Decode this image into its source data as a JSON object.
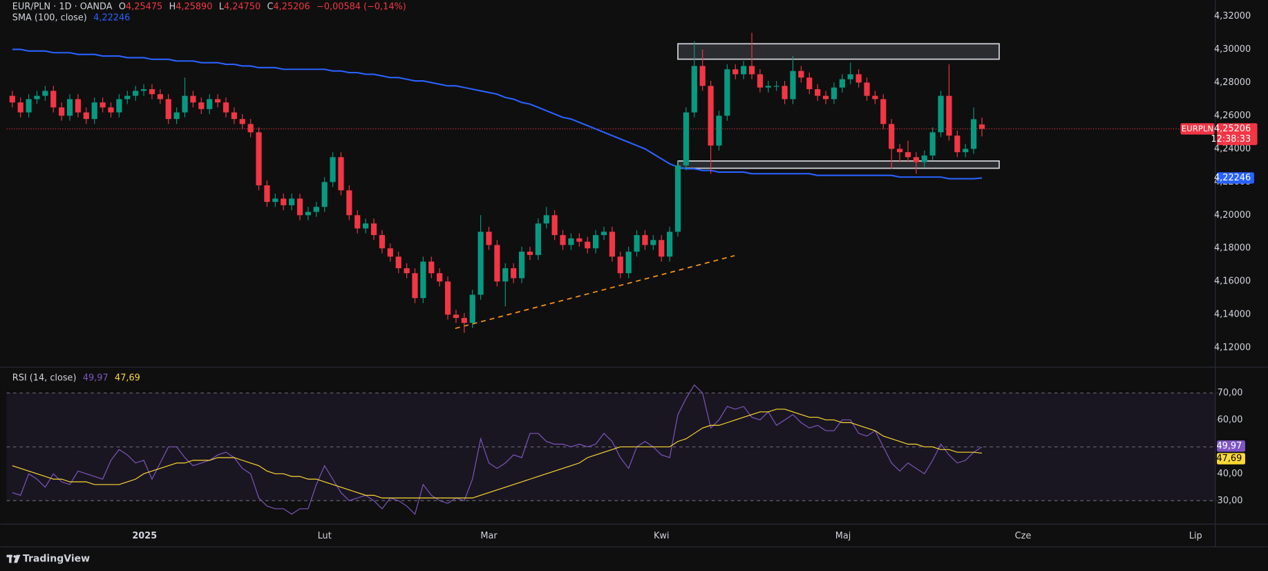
{
  "chart_data": {
    "type": "candlestick",
    "symbol": "EUR/PLN · 1D · OANDA",
    "ohlc_legend": [
      {
        "key": "O",
        "value": "4,25475"
      },
      {
        "key": "H",
        "value": "4,25890"
      },
      {
        "key": "L",
        "value": "4,24750"
      },
      {
        "key": "C",
        "value": "4,25206"
      }
    ],
    "change": "−0,00584 (−0,14%)",
    "up_color": "#089981",
    "down_color": "#f23645",
    "candles": [
      [
        4.272,
        4.275,
        4.265,
        4.268
      ],
      [
        4.268,
        4.271,
        4.259,
        4.262
      ],
      [
        4.262,
        4.273,
        4.259,
        4.27
      ],
      [
        4.27,
        4.275,
        4.267,
        4.272
      ],
      [
        4.272,
        4.278,
        4.269,
        4.275
      ],
      [
        4.275,
        4.278,
        4.262,
        4.265
      ],
      [
        4.265,
        4.268,
        4.257,
        4.26
      ],
      [
        4.26,
        4.273,
        4.257,
        4.27
      ],
      [
        4.27,
        4.273,
        4.259,
        4.262
      ],
      [
        4.262,
        4.265,
        4.255,
        4.258
      ],
      [
        4.258,
        4.271,
        4.255,
        4.268
      ],
      [
        4.268,
        4.271,
        4.262,
        4.265
      ],
      [
        4.265,
        4.268,
        4.259,
        4.262
      ],
      [
        4.262,
        4.273,
        4.259,
        4.27
      ],
      [
        4.27,
        4.275,
        4.267,
        4.272
      ],
      [
        4.272,
        4.278,
        4.269,
        4.275
      ],
      [
        4.275,
        4.279,
        4.272,
        4.276
      ],
      [
        4.276,
        4.279,
        4.27,
        4.273
      ],
      [
        4.273,
        4.276,
        4.267,
        4.27
      ],
      [
        4.27,
        4.273,
        4.255,
        4.258
      ],
      [
        4.258,
        4.265,
        4.255,
        4.262
      ],
      [
        4.262,
        4.283,
        4.259,
        4.272
      ],
      [
        4.272,
        4.275,
        4.265,
        4.268
      ],
      [
        4.268,
        4.271,
        4.261,
        4.264
      ],
      [
        4.264,
        4.273,
        4.261,
        4.27
      ],
      [
        4.27,
        4.273,
        4.265,
        4.268
      ],
      [
        4.268,
        4.271,
        4.259,
        4.262
      ],
      [
        4.262,
        4.265,
        4.255,
        4.258
      ],
      [
        4.258,
        4.261,
        4.252,
        4.255
      ],
      [
        4.255,
        4.258,
        4.247,
        4.25
      ],
      [
        4.25,
        4.253,
        4.215,
        4.218
      ],
      [
        4.218,
        4.221,
        4.205,
        4.208
      ],
      [
        4.208,
        4.213,
        4.205,
        4.21
      ],
      [
        4.21,
        4.213,
        4.203,
        4.206
      ],
      [
        4.206,
        4.213,
        4.203,
        4.21
      ],
      [
        4.21,
        4.213,
        4.197,
        4.2
      ],
      [
        4.2,
        4.205,
        4.197,
        4.202
      ],
      [
        4.202,
        4.208,
        4.199,
        4.205
      ],
      [
        4.205,
        4.223,
        4.202,
        4.22
      ],
      [
        4.22,
        4.238,
        4.217,
        4.235
      ],
      [
        4.235,
        4.238,
        4.212,
        4.215
      ],
      [
        4.215,
        4.218,
        4.197,
        4.2
      ],
      [
        4.2,
        4.203,
        4.189,
        4.192
      ],
      [
        4.192,
        4.198,
        4.189,
        4.195
      ],
      [
        4.195,
        4.198,
        4.185,
        4.188
      ],
      [
        4.188,
        4.191,
        4.177,
        4.18
      ],
      [
        4.18,
        4.183,
        4.172,
        4.175
      ],
      [
        4.175,
        4.178,
        4.165,
        4.168
      ],
      [
        4.168,
        4.171,
        4.162,
        4.165
      ],
      [
        4.165,
        4.168,
        4.147,
        4.15
      ],
      [
        4.15,
        4.175,
        4.147,
        4.172
      ],
      [
        4.172,
        4.175,
        4.162,
        4.165
      ],
      [
        4.165,
        4.168,
        4.157,
        4.16
      ],
      [
        4.16,
        4.163,
        4.137,
        4.14
      ],
      [
        4.14,
        4.143,
        4.135,
        4.138
      ],
      [
        4.138,
        4.141,
        4.129,
        4.135
      ],
      [
        4.135,
        4.155,
        4.132,
        4.152
      ],
      [
        4.152,
        4.2,
        4.149,
        4.19
      ],
      [
        4.19,
        4.193,
        4.179,
        4.182
      ],
      [
        4.182,
        4.185,
        4.157,
        4.16
      ],
      [
        4.16,
        4.171,
        4.145,
        4.168
      ],
      [
        4.168,
        4.171,
        4.159,
        4.162
      ],
      [
        4.162,
        4.181,
        4.159,
        4.178
      ],
      [
        4.178,
        4.181,
        4.173,
        4.176
      ],
      [
        4.176,
        4.198,
        4.173,
        4.195
      ],
      [
        4.195,
        4.205,
        4.192,
        4.2
      ],
      [
        4.2,
        4.203,
        4.185,
        4.188
      ],
      [
        4.188,
        4.191,
        4.179,
        4.182
      ],
      [
        4.182,
        4.189,
        4.179,
        4.186
      ],
      [
        4.186,
        4.189,
        4.181,
        4.184
      ],
      [
        4.184,
        4.187,
        4.177,
        4.18
      ],
      [
        4.18,
        4.191,
        4.177,
        4.188
      ],
      [
        4.188,
        4.193,
        4.185,
        4.19
      ],
      [
        4.19,
        4.193,
        4.172,
        4.175
      ],
      [
        4.175,
        4.178,
        4.162,
        4.165
      ],
      [
        4.165,
        4.181,
        4.162,
        4.178
      ],
      [
        4.178,
        4.191,
        4.175,
        4.188
      ],
      [
        4.188,
        4.191,
        4.179,
        4.182
      ],
      [
        4.182,
        4.188,
        4.179,
        4.185
      ],
      [
        4.185,
        4.188,
        4.172,
        4.175
      ],
      [
        4.175,
        4.193,
        4.172,
        4.19
      ],
      [
        4.19,
        4.233,
        4.187,
        4.23
      ],
      [
        4.23,
        4.265,
        4.227,
        4.262
      ],
      [
        4.262,
        4.305,
        4.259,
        4.29
      ],
      [
        4.29,
        4.3,
        4.275,
        4.278
      ],
      [
        4.278,
        4.281,
        4.225,
        4.242
      ],
      [
        4.242,
        4.263,
        4.239,
        4.26
      ],
      [
        4.26,
        4.291,
        4.257,
        4.288
      ],
      [
        4.288,
        4.291,
        4.282,
        4.285
      ],
      [
        4.285,
        4.293,
        4.282,
        4.29
      ],
      [
        4.29,
        4.31,
        4.282,
        4.285
      ],
      [
        4.285,
        4.288,
        4.274,
        4.277
      ],
      [
        4.277,
        4.281,
        4.274,
        4.278
      ],
      [
        4.278,
        4.281,
        4.275,
        4.278
      ],
      [
        4.278,
        4.281,
        4.267,
        4.27
      ],
      [
        4.27,
        4.296,
        4.267,
        4.287
      ],
      [
        4.287,
        4.29,
        4.28,
        4.283
      ],
      [
        4.283,
        4.286,
        4.273,
        4.276
      ],
      [
        4.276,
        4.279,
        4.269,
        4.272
      ],
      [
        4.272,
        4.275,
        4.267,
        4.27
      ],
      [
        4.27,
        4.28,
        4.267,
        4.277
      ],
      [
        4.277,
        4.285,
        4.274,
        4.282
      ],
      [
        4.282,
        4.292,
        4.279,
        4.285
      ],
      [
        4.285,
        4.288,
        4.277,
        4.28
      ],
      [
        4.28,
        4.283,
        4.269,
        4.272
      ],
      [
        4.272,
        4.275,
        4.267,
        4.27
      ],
      [
        4.27,
        4.273,
        4.252,
        4.255
      ],
      [
        4.255,
        4.258,
        4.228,
        4.24
      ],
      [
        4.24,
        4.243,
        4.232,
        4.238
      ],
      [
        4.238,
        4.245,
        4.232,
        4.235
      ],
      [
        4.235,
        4.238,
        4.225,
        4.232
      ],
      [
        4.232,
        4.239,
        4.229,
        4.236
      ],
      [
        4.236,
        4.253,
        4.233,
        4.25
      ],
      [
        4.25,
        4.275,
        4.247,
        4.272
      ],
      [
        4.272,
        4.291,
        4.245,
        4.248
      ],
      [
        4.248,
        4.251,
        4.235,
        4.238
      ],
      [
        4.238,
        4.243,
        4.235,
        4.24
      ],
      [
        4.24,
        4.265,
        4.237,
        4.2579
      ],
      [
        4.25475,
        4.2589,
        4.2475,
        4.25206
      ]
    ],
    "xlim": [
      -0.69,
      146.4
    ],
    "xticks": [
      {
        "value": 16.1,
        "label": "2025"
      },
      {
        "value": 38.0,
        "label": "Lut"
      },
      {
        "value": 58.0,
        "label": "Mar"
      },
      {
        "value": 79.0,
        "label": "Kwi"
      },
      {
        "value": 101.1,
        "label": "Maj"
      },
      {
        "value": 123.0,
        "label": "Cze"
      },
      {
        "value": 144.0,
        "label": "Lip"
      }
    ],
    "ylim": [
      4.1088,
      4.3298
    ],
    "yticks": [
      {
        "value": 4.12,
        "label": "4,12000"
      },
      {
        "value": 4.14,
        "label": "4,14000"
      },
      {
        "value": 4.16,
        "label": "4,16000"
      },
      {
        "value": 4.18,
        "label": "4,18000"
      },
      {
        "value": 4.2,
        "label": "4,20000"
      },
      {
        "value": 4.22,
        "label": "4,22000"
      },
      {
        "value": 4.24,
        "label": "4,24000"
      },
      {
        "value": 4.26,
        "label": "4,26000"
      },
      {
        "value": 4.28,
        "label": "4,28000"
      },
      {
        "value": 4.3,
        "label": "4,30000"
      },
      {
        "value": 4.32,
        "label": "4,32000"
      }
    ],
    "last_price": {
      "symbol": "EURPLN",
      "value": 4.25206,
      "label": "4,25206",
      "countdown": "12:38:33"
    },
    "sma": {
      "name": "SMA (100, close)",
      "value_label": "4,22246",
      "color": "#2962ff",
      "values": [
        4.3,
        4.3,
        4.299,
        4.299,
        4.299,
        4.298,
        4.298,
        4.298,
        4.297,
        4.297,
        4.297,
        4.296,
        4.296,
        4.296,
        4.295,
        4.295,
        4.295,
        4.294,
        4.294,
        4.294,
        4.293,
        4.293,
        4.293,
        4.292,
        4.292,
        4.292,
        4.291,
        4.291,
        4.29,
        4.29,
        4.289,
        4.289,
        4.289,
        4.288,
        4.288,
        4.288,
        4.288,
        4.288,
        4.288,
        4.287,
        4.287,
        4.286,
        4.286,
        4.285,
        4.285,
        4.284,
        4.283,
        4.283,
        4.282,
        4.281,
        4.281,
        4.28,
        4.279,
        4.278,
        4.278,
        4.277,
        4.276,
        4.275,
        4.274,
        4.273,
        4.271,
        4.27,
        4.268,
        4.267,
        4.265,
        4.263,
        4.261,
        4.259,
        4.258,
        4.256,
        4.254,
        4.252,
        4.25,
        4.248,
        4.246,
        4.244,
        4.242,
        4.24,
        4.237,
        4.234,
        4.231,
        4.229,
        4.228,
        4.228,
        4.227,
        4.227,
        4.226,
        4.226,
        4.226,
        4.226,
        4.225,
        4.225,
        4.225,
        4.225,
        4.225,
        4.225,
        4.225,
        4.225,
        4.224,
        4.224,
        4.224,
        4.224,
        4.224,
        4.224,
        4.224,
        4.224,
        4.224,
        4.224,
        4.223,
        4.223,
        4.223,
        4.223,
        4.223,
        4.223,
        4.222,
        4.222,
        4.222,
        4.222,
        4.22246
      ]
    },
    "zones": [
      {
        "x": [
          81.0,
          120.1
        ],
        "y": [
          4.2941,
          4.3034
        ]
      },
      {
        "x": [
          81.0,
          120.1
        ],
        "y": [
          4.2283,
          4.2327
        ]
      }
    ],
    "trendline": {
      "x": [
        53.9,
        87.9
      ],
      "y": [
        4.1317,
        4.1756
      ],
      "color": "#f7931a"
    },
    "rsi": {
      "name": "RSI (14, close)",
      "ylim": [
        21.3,
        79.3
      ],
      "yticks": [
        {
          "value": 30,
          "label": "30,00"
        },
        {
          "value": 40,
          "label": "40,00"
        },
        {
          "value": 60,
          "label": "60,00"
        },
        {
          "value": 70,
          "label": "70,00"
        }
      ],
      "band": [
        30,
        70
      ],
      "mid": 50,
      "series": [
        {
          "color": "#7e57c2",
          "value_label": "49,97",
          "values": [
            33,
            32,
            40,
            38,
            35,
            40,
            37,
            36,
            41,
            40,
            39,
            38,
            45,
            49,
            47,
            44,
            45,
            38,
            44,
            50,
            50,
            46,
            43,
            44,
            45,
            47,
            48,
            46,
            42,
            40,
            31,
            28,
            27,
            27,
            25,
            27,
            27,
            36,
            43,
            38,
            33,
            30,
            31,
            32,
            30,
            27,
            31,
            30,
            28,
            25,
            36,
            32,
            30,
            29,
            31,
            30,
            38,
            53,
            44,
            42,
            44,
            47,
            46,
            55,
            55,
            52,
            51,
            51,
            50,
            51,
            50,
            51,
            55,
            52,
            46,
            42,
            50,
            52,
            50,
            47,
            46,
            62,
            68,
            73,
            70,
            57,
            60,
            65,
            64,
            65,
            61,
            60,
            63,
            58,
            60,
            62,
            59,
            57,
            58,
            56,
            56,
            60,
            60,
            55,
            54,
            56,
            50,
            44,
            41,
            44,
            42,
            40,
            45,
            51,
            47,
            44,
            45,
            48,
            49.97
          ]
        },
        {
          "color": "#fdd835",
          "value_label": "47,69",
          "values": [
            43,
            42,
            41,
            40,
            39,
            38,
            38,
            37,
            37,
            37,
            36,
            36,
            36,
            36,
            37,
            38,
            40,
            41,
            42,
            43,
            44,
            44,
            45,
            45,
            45,
            46,
            46,
            46,
            45,
            44,
            43,
            41,
            40,
            40,
            39,
            39,
            38,
            38,
            37,
            36,
            35,
            34,
            33,
            32,
            32,
            31,
            31,
            31,
            31,
            31,
            31,
            31,
            31,
            31,
            31,
            31,
            31,
            32,
            33,
            34,
            35,
            36,
            37,
            38,
            39,
            40,
            41,
            42,
            43,
            44,
            46,
            47,
            48,
            49,
            50,
            50,
            50,
            50,
            50,
            50,
            50,
            52,
            53,
            55,
            57,
            58,
            58,
            59,
            60,
            61,
            62,
            63,
            63,
            64,
            64,
            63,
            62,
            61,
            61,
            60,
            60,
            59,
            59,
            58,
            57,
            56,
            54,
            53,
            52,
            51,
            51,
            50,
            50,
            49,
            49,
            48,
            48,
            48,
            47.69
          ]
        }
      ]
    }
  },
  "footer": {
    "brand": "TradingView"
  }
}
